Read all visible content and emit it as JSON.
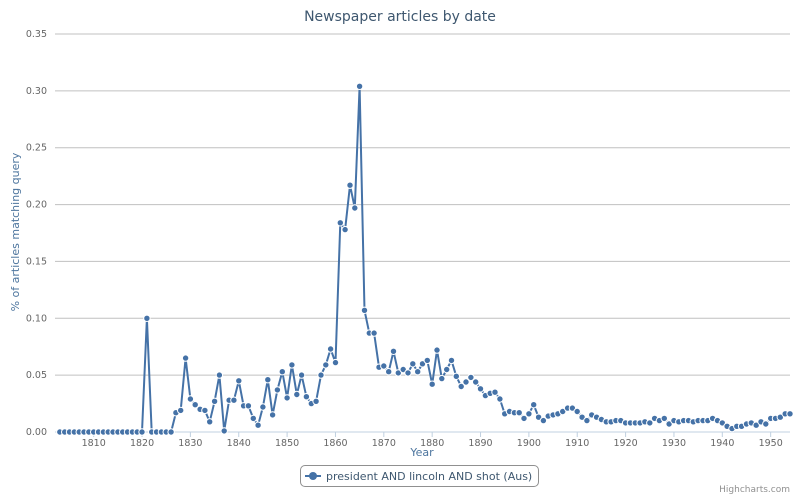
{
  "chart_data": {
    "type": "line",
    "title": "Newspaper articles by date",
    "xlabel": "Year",
    "ylabel": "% of articles matching query",
    "xlim": [
      1802,
      1954
    ],
    "ylim": [
      0,
      0.35
    ],
    "x_ticks": [
      1810,
      1820,
      1830,
      1840,
      1850,
      1860,
      1870,
      1880,
      1890,
      1900,
      1910,
      1920,
      1930,
      1940,
      1950
    ],
    "y_ticks": [
      "0.00",
      "0.05",
      "0.10",
      "0.15",
      "0.20",
      "0.25",
      "0.30",
      "0.35"
    ],
    "grid": true,
    "legend_position": "bottom-center",
    "series_color": "#4572A7",
    "series": [
      {
        "name": "president AND lincoln AND shot (Aus)",
        "points": [
          [
            1803,
            0
          ],
          [
            1804,
            0
          ],
          [
            1805,
            0
          ],
          [
            1806,
            0
          ],
          [
            1807,
            0
          ],
          [
            1808,
            0
          ],
          [
            1809,
            0
          ],
          [
            1810,
            0
          ],
          [
            1811,
            0
          ],
          [
            1812,
            0
          ],
          [
            1813,
            0
          ],
          [
            1814,
            0
          ],
          [
            1815,
            0
          ],
          [
            1816,
            0
          ],
          [
            1817,
            0
          ],
          [
            1818,
            0
          ],
          [
            1819,
            0
          ],
          [
            1820,
            0
          ],
          [
            1821,
            0.1
          ],
          [
            1822,
            0
          ],
          [
            1823,
            0
          ],
          [
            1824,
            0
          ],
          [
            1825,
            0
          ],
          [
            1826,
            0
          ],
          [
            1827,
            0.017
          ],
          [
            1828,
            0.019
          ],
          [
            1829,
            0.065
          ],
          [
            1830,
            0.029
          ],
          [
            1831,
            0.024
          ],
          [
            1832,
            0.02
          ],
          [
            1833,
            0.019
          ],
          [
            1834,
            0.009
          ],
          [
            1835,
            0.027
          ],
          [
            1836,
            0.05
          ],
          [
            1837,
            0.001
          ],
          [
            1838,
            0.028
          ],
          [
            1839,
            0.028
          ],
          [
            1840,
            0.045
          ],
          [
            1841,
            0.023
          ],
          [
            1842,
            0.023
          ],
          [
            1843,
            0.012
          ],
          [
            1844,
            0.006
          ],
          [
            1845,
            0.022
          ],
          [
            1846,
            0.046
          ],
          [
            1847,
            0.015
          ],
          [
            1848,
            0.037
          ],
          [
            1849,
            0.053
          ],
          [
            1850,
            0.03
          ],
          [
            1851,
            0.059
          ],
          [
            1852,
            0.033
          ],
          [
            1853,
            0.05
          ],
          [
            1854,
            0.031
          ],
          [
            1855,
            0.025
          ],
          [
            1856,
            0.027
          ],
          [
            1857,
            0.05
          ],
          [
            1858,
            0.059
          ],
          [
            1859,
            0.073
          ],
          [
            1860,
            0.061
          ],
          [
            1861,
            0.184
          ],
          [
            1862,
            0.178
          ],
          [
            1863,
            0.217
          ],
          [
            1864,
            0.197
          ],
          [
            1865,
            0.304
          ],
          [
            1866,
            0.107
          ],
          [
            1867,
            0.087
          ],
          [
            1868,
            0.087
          ],
          [
            1869,
            0.057
          ],
          [
            1870,
            0.058
          ],
          [
            1871,
            0.053
          ],
          [
            1872,
            0.071
          ],
          [
            1873,
            0.052
          ],
          [
            1874,
            0.055
          ],
          [
            1875,
            0.052
          ],
          [
            1876,
            0.06
          ],
          [
            1877,
            0.053
          ],
          [
            1878,
            0.06
          ],
          [
            1879,
            0.063
          ],
          [
            1880,
            0.042
          ],
          [
            1881,
            0.072
          ],
          [
            1882,
            0.047
          ],
          [
            1883,
            0.055
          ],
          [
            1884,
            0.063
          ],
          [
            1885,
            0.049
          ],
          [
            1886,
            0.04
          ],
          [
            1887,
            0.044
          ],
          [
            1888,
            0.048
          ],
          [
            1889,
            0.044
          ],
          [
            1890,
            0.038
          ],
          [
            1891,
            0.032
          ],
          [
            1892,
            0.034
          ],
          [
            1893,
            0.035
          ],
          [
            1894,
            0.029
          ],
          [
            1895,
            0.016
          ],
          [
            1896,
            0.018
          ],
          [
            1897,
            0.017
          ],
          [
            1898,
            0.017
          ],
          [
            1899,
            0.012
          ],
          [
            1900,
            0.016
          ],
          [
            1901,
            0.024
          ],
          [
            1902,
            0.013
          ],
          [
            1903,
            0.01
          ],
          [
            1904,
            0.014
          ],
          [
            1905,
            0.015
          ],
          [
            1906,
            0.016
          ],
          [
            1907,
            0.018
          ],
          [
            1908,
            0.021
          ],
          [
            1909,
            0.021
          ],
          [
            1910,
            0.018
          ],
          [
            1911,
            0.013
          ],
          [
            1912,
            0.01
          ],
          [
            1913,
            0.015
          ],
          [
            1914,
            0.013
          ],
          [
            1915,
            0.011
          ],
          [
            1916,
            0.009
          ],
          [
            1917,
            0.009
          ],
          [
            1918,
            0.01
          ],
          [
            1919,
            0.01
          ],
          [
            1920,
            0.008
          ],
          [
            1921,
            0.008
          ],
          [
            1922,
            0.008
          ],
          [
            1923,
            0.008
          ],
          [
            1924,
            0.009
          ],
          [
            1925,
            0.008
          ],
          [
            1926,
            0.012
          ],
          [
            1927,
            0.01
          ],
          [
            1928,
            0.012
          ],
          [
            1929,
            0.007
          ],
          [
            1930,
            0.01
          ],
          [
            1931,
            0.009
          ],
          [
            1932,
            0.01
          ],
          [
            1933,
            0.01
          ],
          [
            1934,
            0.009
          ],
          [
            1935,
            0.01
          ],
          [
            1936,
            0.01
          ],
          [
            1937,
            0.01
          ],
          [
            1938,
            0.012
          ],
          [
            1939,
            0.01
          ],
          [
            1940,
            0.008
          ],
          [
            1941,
            0.005
          ],
          [
            1942,
            0.003
          ],
          [
            1943,
            0.005
          ],
          [
            1944,
            0.005
          ],
          [
            1945,
            0.007
          ],
          [
            1946,
            0.008
          ],
          [
            1947,
            0.006
          ],
          [
            1948,
            0.009
          ],
          [
            1949,
            0.007
          ],
          [
            1950,
            0.012
          ],
          [
            1951,
            0.012
          ],
          [
            1952,
            0.013
          ],
          [
            1953,
            0.016
          ],
          [
            1954,
            0.016
          ]
        ]
      }
    ]
  },
  "credits": "Highcharts.com"
}
